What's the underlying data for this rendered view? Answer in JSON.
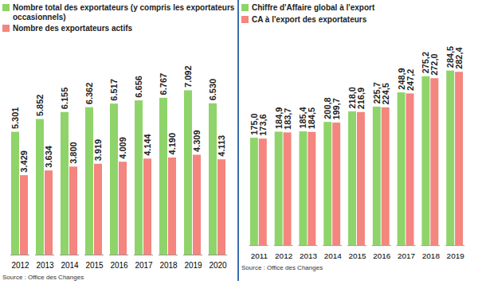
{
  "chart_data": [
    {
      "type": "bar",
      "categories": [
        "2012",
        "2013",
        "2014",
        "2015",
        "2016",
        "2017",
        "2018",
        "2019",
        "2020"
      ],
      "series": [
        {
          "name": "Nombre total des exportateurs (y compris les exportateurs occasionnels)",
          "color": "#8fd46a",
          "values": [
            5301,
            5852,
            6155,
            6362,
            6517,
            6656,
            6767,
            7092,
            6530
          ],
          "value_labels": [
            "5.301",
            "5.852",
            "6.155",
            "6.362",
            "6.517",
            "6.656",
            "6.767",
            "7.092",
            "6.530"
          ]
        },
        {
          "name": "Nombre des exportateurs actifs",
          "color": "#f4857f",
          "values": [
            3429,
            3634,
            3800,
            3919,
            4009,
            4144,
            4190,
            4309,
            4113
          ],
          "value_labels": [
            "3.429",
            "3.634",
            "3.800",
            "3.919",
            "4.009",
            "4.144",
            "4.190",
            "4.309",
            "4.113"
          ]
        }
      ],
      "ylim": [
        0,
        8000
      ],
      "data_labels": true,
      "tick_labels": "x",
      "annotations": [
        "Source : Office des Changes"
      ]
    },
    {
      "type": "bar",
      "categories": [
        "2011",
        "2012",
        "2013",
        "2014",
        "2015",
        "2016",
        "2017",
        "2018",
        "2019"
      ],
      "series": [
        {
          "name": "Chiffre d'Affaire global à l'export",
          "color": "#8fd46a",
          "values": [
            175.0,
            184.9,
            185.4,
            200.8,
            218.0,
            225.7,
            248.9,
            275.2,
            284.5
          ],
          "value_labels": [
            "175,0",
            "184,9",
            "185,4",
            "200,8",
            "218,0",
            "225,7",
            "248,9",
            "275,2",
            "284,5"
          ]
        },
        {
          "name": "CA à l'export des exportateurs",
          "color": "#f4857f",
          "values": [
            173.6,
            183.7,
            184.5,
            199.7,
            216.9,
            224.5,
            247.2,
            272.0,
            282.4
          ],
          "value_labels": [
            "173,6",
            "183,7",
            "184,5",
            "199,7",
            "216,9",
            "224,5",
            "247,2",
            "272,0",
            "282,4"
          ]
        }
      ],
      "ylim": [
        0,
        300
      ],
      "data_labels": true,
      "tick_labels": "x",
      "annotations": [
        "Source : Office des Changes"
      ]
    }
  ]
}
